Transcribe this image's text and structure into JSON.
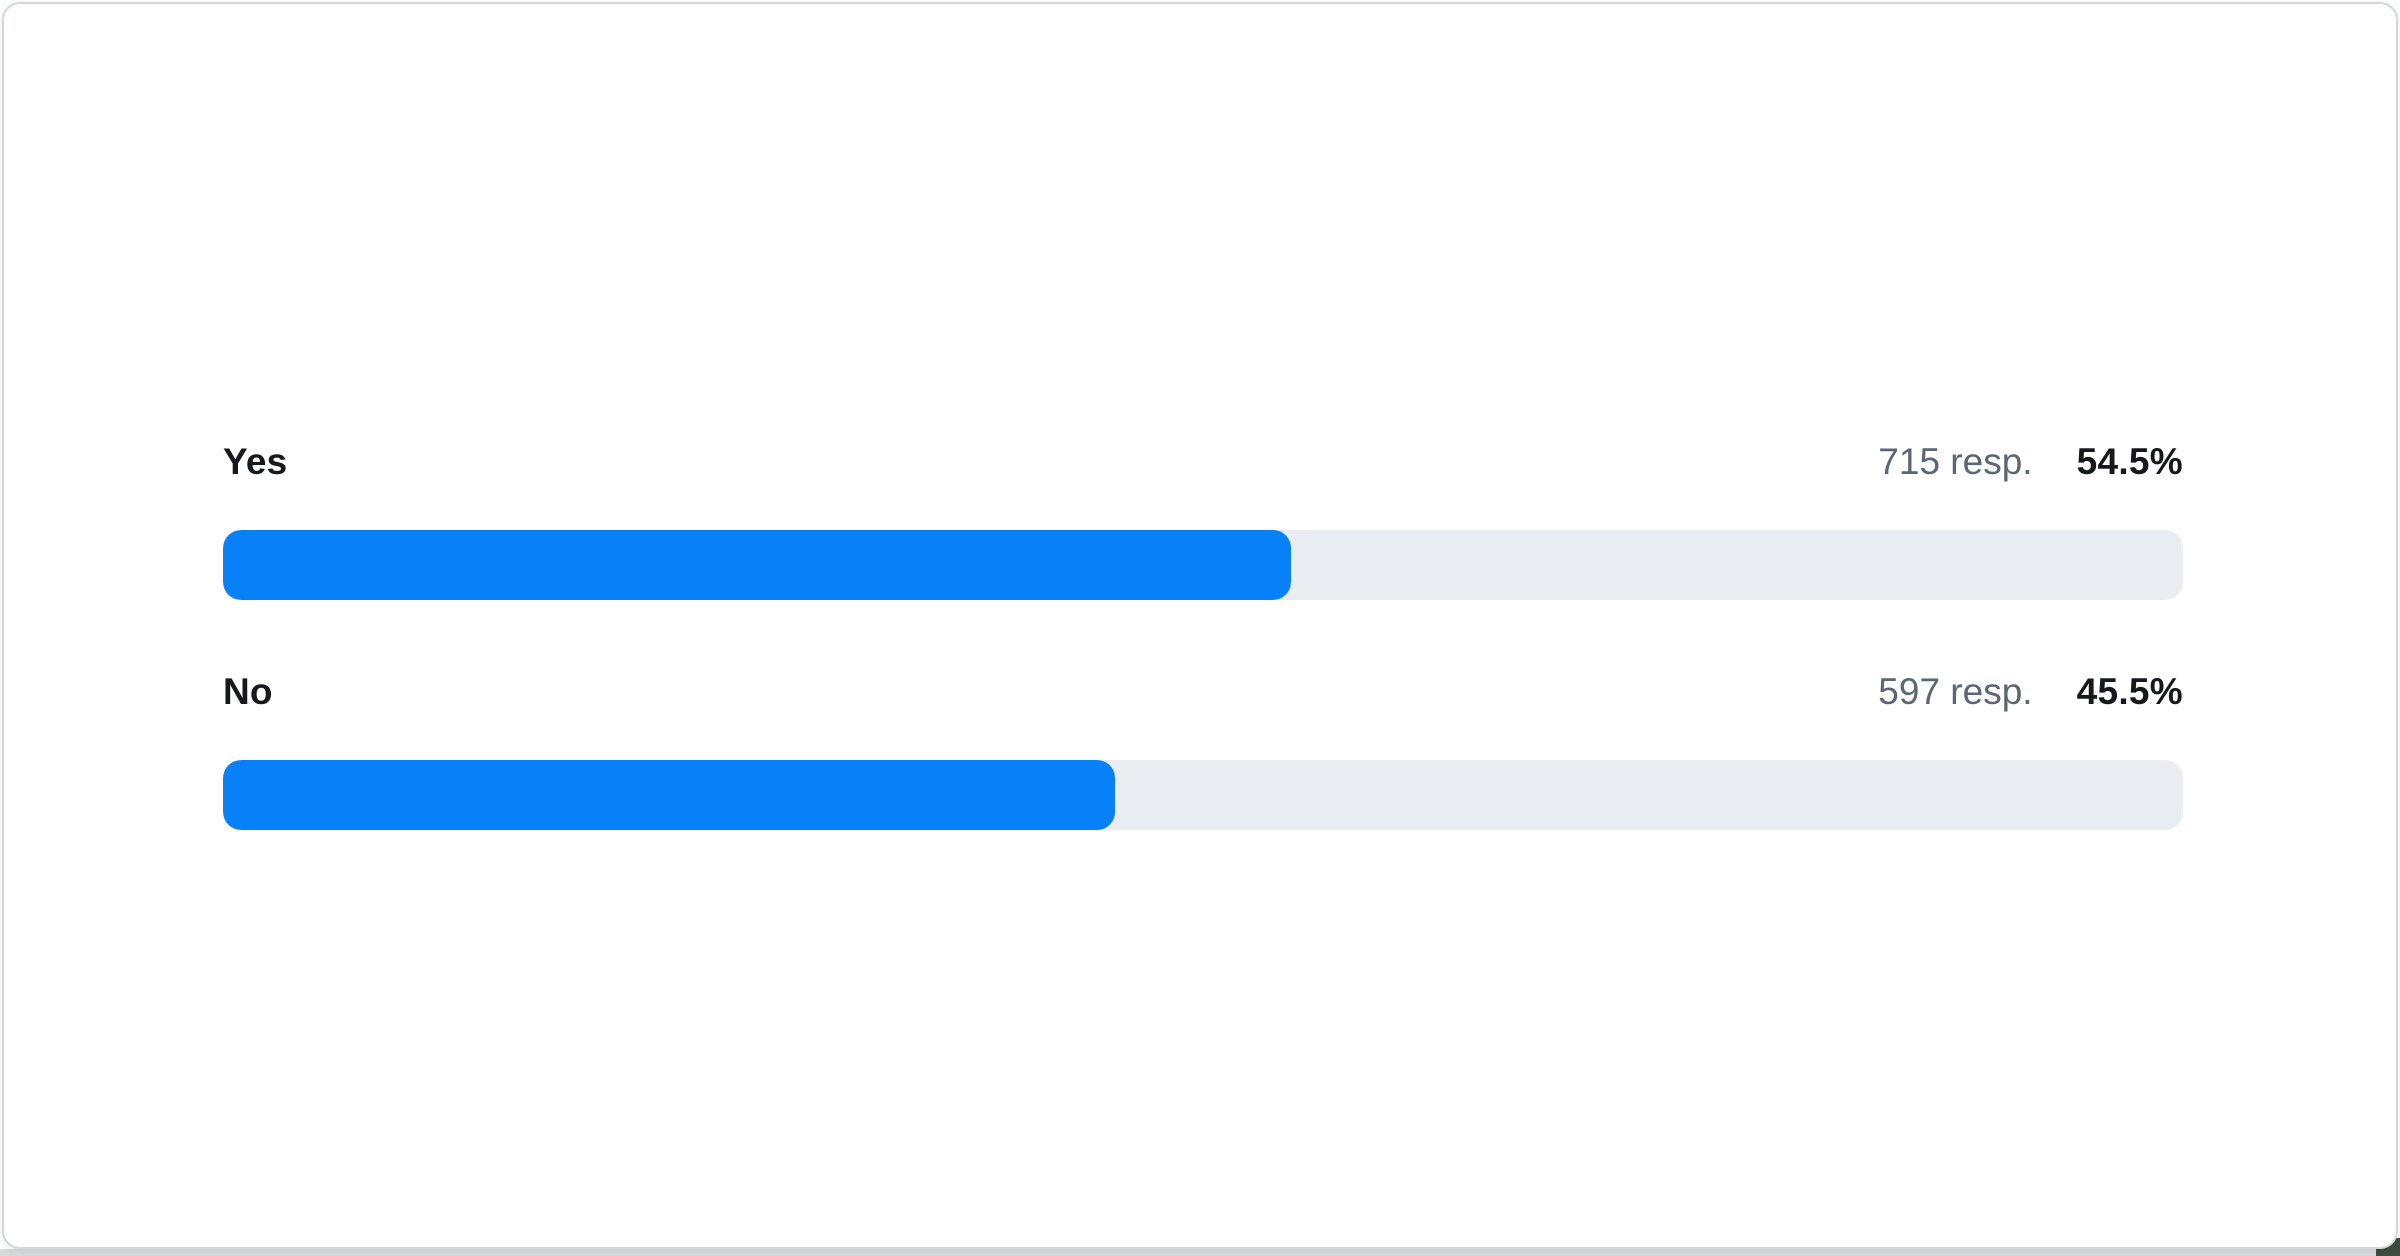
{
  "page": {
    "background_color": "#ffffff",
    "bottom_strip_color": "#d8dade",
    "corner_peek_color": "#3d4a3e"
  },
  "card": {
    "background_color": "#ffffff",
    "border_color": "#d3d7db"
  },
  "chart_data": {
    "type": "bar",
    "orientation": "horizontal",
    "title": "",
    "xlabel": "",
    "ylabel": "",
    "xlim": [
      0,
      100
    ],
    "grid": false,
    "legend": false,
    "bar_color": "#0880f8",
    "track_color": "#e9edf1",
    "categories": [
      "Yes",
      "No"
    ],
    "series": [
      {
        "name": "responses",
        "values": [
          715,
          597
        ]
      },
      {
        "name": "percent",
        "values": [
          54.5,
          45.5
        ]
      }
    ],
    "rows": [
      {
        "label": "Yes",
        "responses": 715,
        "responses_text": "715 resp.",
        "percent": 54.5,
        "percent_text": "54.5%"
      },
      {
        "label": "No",
        "responses": 597,
        "responses_text": "597 resp.",
        "percent": 45.5,
        "percent_text": "45.5%"
      }
    ]
  }
}
